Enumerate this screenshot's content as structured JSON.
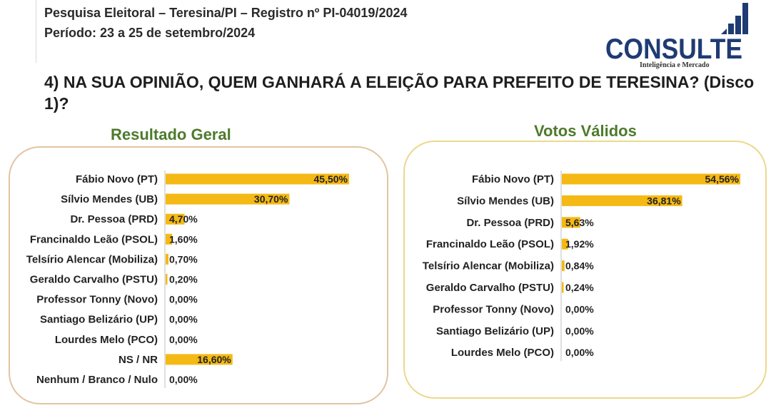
{
  "header": {
    "line1": "Pesquisa Eleitoral – Teresina/PI  – Registro nº PI-04019/2024",
    "line2": "Período: 23 a 25 de setembro/2024"
  },
  "logo": {
    "brand": "CONSULTE",
    "tagline": "Inteligência e Mercado",
    "color": "#1f3b73"
  },
  "question": "4) NA SUA OPINIÃO, QUEM GANHARÁ A ELEIÇÃO PARA PREFEITO   DE TERESINA? (Disco 1)?",
  "colors": {
    "bar": "#f5b915",
    "title": "#4e7a2c",
    "axis": "#bfbfbf"
  },
  "chart_data": [
    {
      "type": "bar",
      "orientation": "horizontal",
      "title": "Resultado Geral",
      "categories": [
        "Fábio Novo (PT)",
        "Sílvio Mendes (UB)",
        "Dr. Pessoa (PRD)",
        "Francinaldo Leão (PSOL)",
        "Telsírio Alencar (Mobiliza)",
        "Geraldo Carvalho (PSTU)",
        "Professor Tonny (Novo)",
        "Santiago Belizário (UP)",
        "Lourdes Melo (PCO)",
        "NS / NR",
        "Nenhum / Branco / Nulo"
      ],
      "values": [
        45.5,
        30.7,
        4.7,
        1.6,
        0.7,
        0.2,
        0.0,
        0.0,
        0.0,
        16.6,
        0.0
      ],
      "labels": [
        "45,50%",
        "30,70%",
        "4,70%",
        "1,60%",
        "0,70%",
        "0,20%",
        "0,00%",
        "0,00%",
        "0,00%",
        "16,60%",
        "0,00%"
      ],
      "unit": "%",
      "xlim": [
        0,
        45.5
      ],
      "grid": false,
      "legend": "none"
    },
    {
      "type": "bar",
      "orientation": "horizontal",
      "title": "Votos Válidos",
      "categories": [
        "Fábio Novo (PT)",
        "Sílvio Mendes (UB)",
        "Dr. Pessoa (PRD)",
        "Francinaldo Leão (PSOL)",
        "Telsírio Alencar (Mobiliza)",
        "Geraldo Carvalho (PSTU)",
        "Professor Tonny (Novo)",
        "Santiago Belizário (UP)",
        "Lourdes Melo (PCO)"
      ],
      "values": [
        54.56,
        36.81,
        5.63,
        1.92,
        0.84,
        0.24,
        0.0,
        0.0,
        0.0
      ],
      "labels": [
        "54,56%",
        "36,81%",
        "5,63%",
        "1,92%",
        "0,84%",
        "0,24%",
        "0,00%",
        "0,00%",
        "0,00%"
      ],
      "unit": "%",
      "xlim": [
        0,
        54.56
      ],
      "grid": false,
      "legend": "none"
    }
  ]
}
